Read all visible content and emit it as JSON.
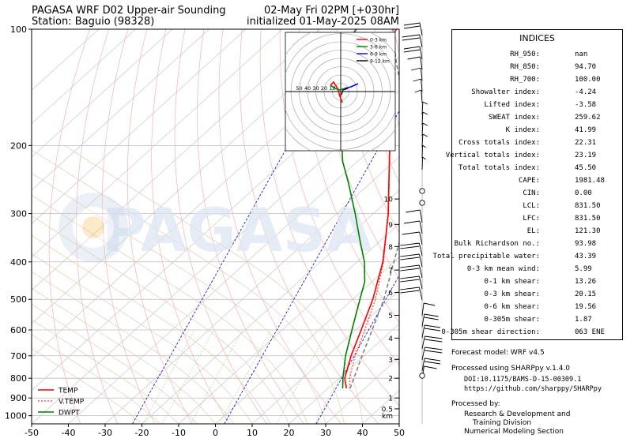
{
  "header": {
    "title_left_1": "PAGASA WRF D02 Upper-air Sounding",
    "title_left_2": "Station: Baguio (98328)",
    "title_right_1": "02-May Fri 02PM [+030hr]",
    "title_right_2": "initialized 01-May-2025 08AM"
  },
  "watermark": "PAGASA",
  "indices": {
    "title": "INDICES",
    "rows": [
      {
        "label": "RH_950:",
        "value": "nan"
      },
      {
        "label": "RH_850:",
        "value": "94.70"
      },
      {
        "label": "RH_700:",
        "value": "100.00"
      },
      {
        "label": "Showalter index:",
        "value": "-4.24"
      },
      {
        "label": "Lifted index:",
        "value": "-3.58"
      },
      {
        "label": "SWEAT index:",
        "value": "259.62"
      },
      {
        "label": "K index:",
        "value": "41.99"
      },
      {
        "label": "Cross totals index:",
        "value": "22.31"
      },
      {
        "label": "Vertical totals index:",
        "value": "23.19"
      },
      {
        "label": "Total totals index:",
        "value": "45.50"
      },
      {
        "label": "CAPE:",
        "value": "1981.48"
      },
      {
        "label": "CIN:",
        "value": "0.00"
      },
      {
        "label": "LCL:",
        "value": "831.50"
      },
      {
        "label": "LFC:",
        "value": "831.50"
      },
      {
        "label": "EL:",
        "value": "121.30"
      },
      {
        "label": "Bulk Richardson no.:",
        "value": "93.98"
      },
      {
        "label": "Total precipitable water:",
        "value": "43.39"
      },
      {
        "label": "0-3 km mean wind:",
        "value": "5.99"
      },
      {
        "label": "0-1 km shear:",
        "value": "13.26"
      },
      {
        "label": "0-3 km shear:",
        "value": "20.15"
      },
      {
        "label": "0-6 km shear:",
        "value": "19.56"
      },
      {
        "label": "0-305m shear:",
        "value": "1.87"
      },
      {
        "label": "0-305m shear direction:",
        "value": "063 ENE"
      }
    ]
  },
  "footer": {
    "model": "Forecast model: WRF v4.5",
    "processed": "Processed using SHARPpy v.1.4.0",
    "doi": "DOI:10.1175/BAMS-D-15-00309.1",
    "url": "https://github.com/sharppy/SHARPpy",
    "processed_by": "Processed by:",
    "org1": "Research & Development and",
    "org2": "Training Division",
    "org3": "Numerical Modeling Section"
  },
  "chart_data": {
    "type": "line",
    "subtype": "skew-T log-P diagram",
    "x_ticks": [
      -50,
      -40,
      -30,
      -20,
      -10,
      0,
      10,
      20,
      30,
      40,
      50
    ],
    "y_ticks": [
      100,
      200,
      300,
      400,
      500,
      600,
      700,
      800,
      900,
      1000
    ],
    "xlim": [
      -50,
      50
    ],
    "ylim": [
      1050,
      100
    ],
    "y_scale": "log",
    "legend_position": "bottom-left",
    "series": [
      {
        "name": "TEMP",
        "color": "#ff0000",
        "points": [
          [
            850,
            25
          ],
          [
            800,
            21.5
          ],
          [
            700,
            16.5
          ],
          [
            600,
            11.5
          ],
          [
            500,
            5.5
          ],
          [
            400,
            -3
          ],
          [
            350,
            -9
          ],
          [
            300,
            -16
          ],
          [
            250,
            -25
          ],
          [
            200,
            -36
          ],
          [
            180,
            -42
          ],
          [
            150,
            -52
          ],
          [
            130,
            -60
          ],
          [
            110,
            -67
          ],
          [
            100,
            -69
          ]
        ]
      },
      {
        "name": "V.TEMP",
        "color": "#ff0000",
        "dashed": true,
        "points": [
          [
            850,
            26
          ],
          [
            800,
            22.8
          ],
          [
            700,
            17.6
          ],
          [
            600,
            12.5
          ],
          [
            500,
            6.2
          ],
          [
            400,
            -2.8
          ],
          [
            350,
            -8.9
          ],
          [
            300,
            -15.9
          ],
          [
            250,
            -24.9
          ],
          [
            200,
            -35.9
          ]
        ]
      },
      {
        "name": "DWPT",
        "color": "#008000",
        "points": [
          [
            850,
            24
          ],
          [
            800,
            21
          ],
          [
            700,
            15
          ],
          [
            600,
            9
          ],
          [
            500,
            2
          ],
          [
            450,
            -2
          ],
          [
            400,
            -8
          ],
          [
            350,
            -16
          ],
          [
            300,
            -25
          ],
          [
            250,
            -36
          ],
          [
            220,
            -44
          ],
          [
            200,
            -49
          ],
          [
            180,
            -55
          ],
          [
            150,
            -66
          ],
          [
            130,
            -73
          ],
          [
            110,
            -78
          ],
          [
            100,
            -80
          ]
        ]
      },
      {
        "name": "parcel",
        "color": "#808080",
        "dashed": true,
        "points": [
          [
            850,
            26
          ],
          [
            800,
            24
          ],
          [
            700,
            19.5
          ],
          [
            600,
            14.5
          ],
          [
            500,
            8.5
          ],
          [
            400,
            0
          ],
          [
            350,
            -5
          ],
          [
            300,
            -12
          ],
          [
            250,
            -21
          ],
          [
            200,
            -32
          ],
          [
            150,
            -47
          ],
          [
            120,
            -60
          ],
          [
            100,
            -70
          ]
        ]
      }
    ],
    "height_km_labels": [
      {
        "p": 1000,
        "label": "km"
      },
      {
        "p": 960,
        "label": "0.5"
      },
      {
        "p": 900,
        "label": "1"
      },
      {
        "p": 800,
        "label": "2"
      },
      {
        "p": 715,
        "label": "3"
      },
      {
        "p": 630,
        "label": "4"
      },
      {
        "p": 550,
        "label": "5"
      },
      {
        "p": 480,
        "label": "6"
      },
      {
        "p": 420,
        "label": "7"
      },
      {
        "p": 365,
        "label": "8"
      },
      {
        "p": 320,
        "label": "9"
      },
      {
        "p": 275,
        "label": "10"
      }
    ],
    "hodograph": {
      "ring_labels": [
        "50",
        "40",
        "30",
        "20",
        "10"
      ],
      "legend": [
        {
          "name": "0-3 km",
          "color": "#ff0000"
        },
        {
          "name": "3-6 km",
          "color": "#008000"
        },
        {
          "name": "6-9 km",
          "color": "#0000ff"
        },
        {
          "name": "9-12 km",
          "color": "#000000"
        }
      ]
    }
  }
}
